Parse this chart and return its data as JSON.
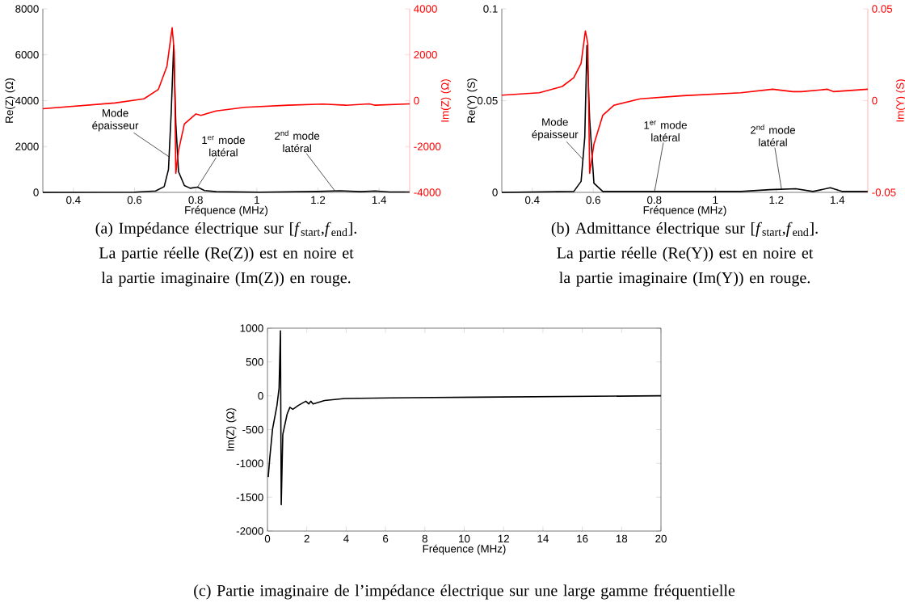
{
  "chart_data": [
    {
      "type": "line",
      "xlabel": "Fréquence (MHz)",
      "ylabel": "Re(Z) (Ω)",
      "y2label": "Im(Z) (Ω)",
      "xlim": [
        0.3,
        1.5
      ],
      "xticks": [
        0.4,
        0.6,
        0.8,
        1,
        1.2,
        1.4
      ],
      "ylim": [
        0,
        8000
      ],
      "yticks": [
        0,
        2000,
        4000,
        6000,
        8000
      ],
      "y2lim": [
        -4000,
        4000
      ],
      "y2ticks": [
        -4000,
        -2000,
        0,
        2000,
        4000
      ],
      "series": [
        {
          "color": "#000000",
          "x": [
            0.3,
            0.6,
            0.669,
            0.697,
            0.711,
            0.72,
            0.728,
            0.735,
            0.744,
            0.763,
            0.782,
            0.806,
            0.829,
            0.867,
            1.009,
            1.198,
            1.273,
            1.339,
            1.387,
            1.434,
            1.5
          ],
          "values": [
            0,
            10,
            60,
            250,
            1000,
            3500,
            6400,
            3000,
            900,
            300,
            180,
            230,
            80,
            30,
            10,
            40,
            70,
            30,
            60,
            20,
            20
          ]
        },
        {
          "color": "#ff0000",
          "axis": "y2",
          "x": [
            0.3,
            0.536,
            0.631,
            0.678,
            0.706,
            0.723,
            0.73,
            0.735,
            0.744,
            0.763,
            0.801,
            0.817,
            0.867,
            0.961,
            1.103,
            1.216,
            1.292,
            1.368,
            1.387,
            1.5
          ],
          "values": [
            -350,
            -100,
            80,
            490,
            1500,
            3180,
            2130,
            -3170,
            -2170,
            -1020,
            -580,
            -640,
            -450,
            -290,
            -200,
            -150,
            -200,
            -140,
            -200,
            -140
          ]
        }
      ],
      "annotations": [
        {
          "text": "Mode épaisseur",
          "x": 0.713,
          "y": 1550
        },
        {
          "text": "1$^{er}$ mode latéral",
          "x": 0.806,
          "y": 230
        },
        {
          "text": "2$^{nd}$ mode latéral",
          "x": 1.255,
          "y": 70
        },
        "(a) Impédance électrique sur [*f*$_{start}$,*f*$_{end}$]. La partie réelle (Re(Z)) est en noire et la partie imaginaire (Im(Z)) en rouge."
      ]
    },
    {
      "type": "line",
      "xlabel": "Fréquence (MHz)",
      "ylabel": "Re(Y) (S)",
      "y2label": "Im(Y) (S)",
      "xlim": [
        0.3,
        1.5
      ],
      "xticks": [
        0.4,
        0.6,
        0.8,
        1,
        1.2,
        1.4
      ],
      "ylim": [
        0,
        0.1
      ],
      "yticks": [
        0,
        0.05,
        0.1
      ],
      "y2lim": [
        -0.05,
        0.05
      ],
      "y2ticks": [
        -0.05,
        0,
        0.05
      ],
      "series": [
        {
          "color": "#000000",
          "x": [
            0.3,
            0.536,
            0.56,
            0.572,
            0.579,
            0.588,
            0.602,
            0.631,
            0.801,
            1.084,
            1.179,
            1.264,
            1.32,
            1.377,
            1.415,
            1.5
          ],
          "values": [
            0,
            0.0005,
            0.006,
            0.03,
            0.08,
            0.04,
            0.005,
            0.0005,
            0.0005,
            0.0005,
            0.0015,
            0.002,
            0.0005,
            0.0025,
            0.0005,
            0.0005
          ]
        },
        {
          "color": "#ff0000",
          "axis": "y2",
          "x": [
            0.3,
            0.423,
            0.498,
            0.536,
            0.56,
            0.574,
            0.582,
            0.588,
            0.602,
            0.631,
            0.668,
            0.754,
            0.895,
            1.084,
            1.188,
            1.254,
            1.283,
            1.368,
            1.387,
            1.5
          ],
          "values": [
            0.003,
            0.0043,
            0.0077,
            0.0125,
            0.0203,
            0.038,
            0.031,
            -0.0396,
            -0.0238,
            -0.008,
            -0.0025,
            0.001,
            0.0027,
            0.0043,
            0.0062,
            0.0049,
            0.0049,
            0.0062,
            0.0049,
            0.0062
          ]
        }
      ],
      "annotations": [
        {
          "text": "Mode épaisseur",
          "x": 0.566,
          "y": 0.018
        },
        {
          "text": "1$^{er}$ mode latéral",
          "x": 0.801,
          "y": 0.0005
        },
        {
          "text": "2$^{nd}$ mode latéral",
          "x": 1.217,
          "y": 0.0017
        },
        "(b) Admittance électrique sur [*f*$_{start}$,*f*$_{end}$]. La partie réelle (Re(Y)) est en noire et la partie imaginaire (Im(Y)) en rouge."
      ]
    },
    {
      "type": "line",
      "xlabel": "Fréquence (MHz)",
      "ylabel": "Im(Z) (Ω)",
      "xlim": [
        0,
        20
      ],
      "xticks": [
        0,
        2,
        4,
        6,
        8,
        10,
        12,
        14,
        16,
        18,
        20
      ],
      "ylim": [
        -2000,
        1000
      ],
      "yticks": [
        -2000,
        -1500,
        -1000,
        -500,
        0,
        500,
        1000
      ],
      "series": [
        {
          "color": "#000000",
          "x": [
            0.04,
            0.12,
            0.26,
            0.48,
            0.59,
            0.66,
            0.7,
            0.78,
            1.0,
            1.14,
            1.29,
            1.58,
            1.95,
            2.1,
            2.2,
            2.32,
            2.9,
            3.93,
            6.28,
            10.68,
            20
          ],
          "values": [
            -1200,
            -910,
            -490,
            -150,
            110,
            960,
            -1610,
            -570,
            -270,
            -170,
            -200,
            -140,
            -80,
            -120,
            -80,
            -120,
            -70,
            -40,
            -30,
            -20,
            0
          ]
        }
      ],
      "annotations": [
        "(c) Partie imaginaire de l’impédance électrique sur une large gamme fréquentielle"
      ]
    }
  ]
}
